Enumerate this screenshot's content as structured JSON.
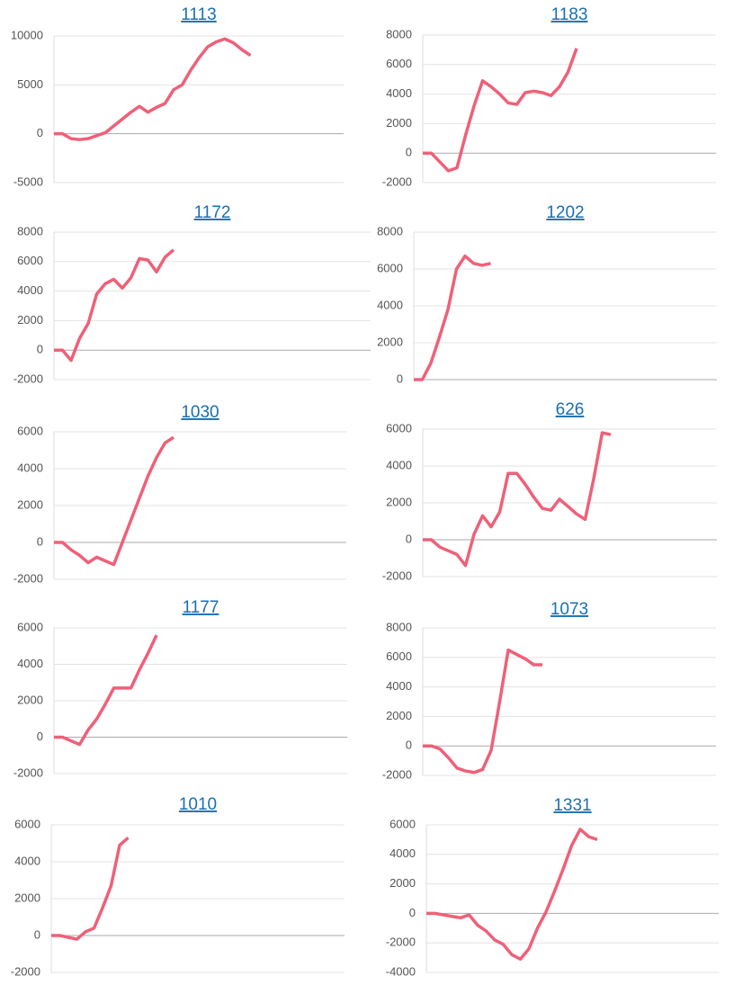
{
  "chart_data": [
    {
      "type": "line",
      "title": "1113",
      "color": "#ef6078",
      "ylim": [
        -5000,
        10000
      ],
      "yticks": [
        10000,
        5000,
        0,
        -5000
      ],
      "values": [
        0,
        0,
        -500,
        -600,
        -500,
        -200,
        100,
        800,
        1500,
        2200,
        2800,
        2200,
        2700,
        3100,
        4500,
        5000,
        6500,
        7800,
        8900,
        9400,
        9700,
        9300,
        8600,
        8000
      ]
    },
    {
      "type": "line",
      "title": "1183",
      "color": "#ef6078",
      "ylim": [
        -2000,
        8000
      ],
      "yticks": [
        8000,
        6000,
        4000,
        2000,
        0,
        -2000
      ],
      "values": [
        0,
        0,
        -600,
        -1200,
        -1000,
        1200,
        3200,
        4900,
        4500,
        4000,
        3400,
        3300,
        4100,
        4200,
        4100,
        3900,
        4500,
        5500,
        7100
      ]
    },
    {
      "type": "line",
      "title": "1172",
      "color": "#ef6078",
      "ylim": [
        -2000,
        8000
      ],
      "yticks": [
        8000,
        6000,
        4000,
        2000,
        0,
        -2000
      ],
      "values": [
        0,
        0,
        -700,
        800,
        1800,
        3800,
        4500,
        4800,
        4200,
        4900,
        6200,
        6100,
        5300,
        6300,
        6800
      ]
    },
    {
      "type": "line",
      "title": "1202",
      "color": "#ef6078",
      "ylim": [
        0,
        8000
      ],
      "yticks": [
        8000,
        6000,
        4000,
        2000,
        0
      ],
      "values": [
        0,
        0,
        900,
        2300,
        3800,
        6000,
        6700,
        6300,
        6200,
        6300
      ]
    },
    {
      "type": "line",
      "title": "1030",
      "color": "#ef6078",
      "ylim": [
        -2000,
        6000
      ],
      "yticks": [
        6000,
        4000,
        2000,
        0,
        -2000
      ],
      "values": [
        0,
        0,
        -400,
        -700,
        -1100,
        -800,
        -1000,
        -1200,
        0,
        1200,
        2400,
        3600,
        4600,
        5400,
        5700
      ]
    },
    {
      "type": "line",
      "title": "626",
      "color": "#ef6078",
      "ylim": [
        -2000,
        6000
      ],
      "yticks": [
        6000,
        4000,
        2000,
        0,
        -2000
      ],
      "values": [
        0,
        0,
        -400,
        -600,
        -800,
        -1400,
        300,
        1300,
        700,
        1500,
        3600,
        3600,
        3000,
        2300,
        1700,
        1600,
        2200,
        1800,
        1400,
        1100,
        3300,
        5800,
        5700
      ]
    },
    {
      "type": "line",
      "title": "1177",
      "color": "#ef6078",
      "ylim": [
        -2000,
        6000
      ],
      "yticks": [
        6000,
        4000,
        2000,
        0,
        -2000
      ],
      "values": [
        0,
        0,
        -200,
        -400,
        400,
        1000,
        1800,
        2700,
        2700,
        2700,
        3700,
        4600,
        5600
      ]
    },
    {
      "type": "line",
      "title": "1073",
      "color": "#ef6078",
      "ylim": [
        -2000,
        8000
      ],
      "yticks": [
        8000,
        6000,
        4000,
        2000,
        0,
        -2000
      ],
      "values": [
        0,
        0,
        -200,
        -800,
        -1500,
        -1700,
        -1800,
        -1600,
        -300,
        3000,
        6500,
        6200,
        5900,
        5500,
        5500
      ]
    },
    {
      "type": "line",
      "title": "1010",
      "color": "#ef6078",
      "ylim": [
        -2000,
        6000
      ],
      "yticks": [
        6000,
        4000,
        2000,
        0,
        -2000
      ],
      "values": [
        0,
        0,
        -100,
        -200,
        200,
        400,
        1500,
        2700,
        4900,
        5300
      ]
    },
    {
      "type": "line",
      "title": "1331",
      "color": "#ef6078",
      "ylim": [
        -4000,
        6000
      ],
      "yticks": [
        6000,
        4000,
        2000,
        0,
        -2000,
        -4000
      ],
      "values": [
        0,
        0,
        -100,
        -200,
        -300,
        -100,
        -800,
        -1200,
        -1800,
        -2100,
        -2800,
        -3100,
        -2400,
        -1000,
        100,
        1500,
        3000,
        4600,
        5700,
        5200,
        5000
      ]
    }
  ]
}
